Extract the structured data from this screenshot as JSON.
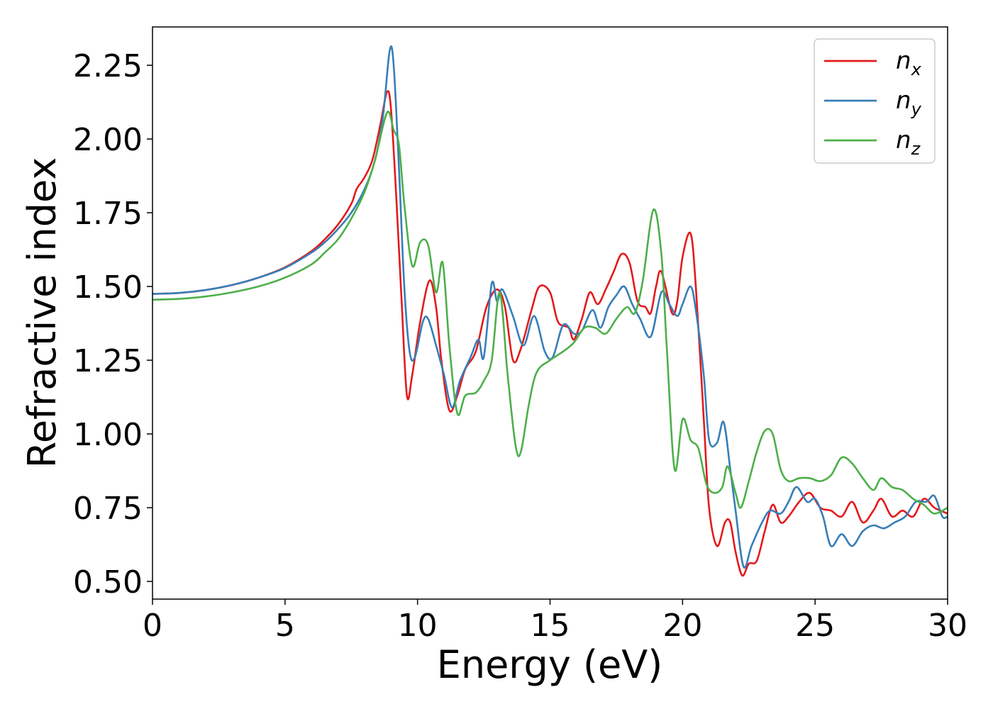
{
  "chart_data": {
    "type": "line",
    "xlabel": "Energy (eV)",
    "ylabel": "Refractive index",
    "xlim": [
      0,
      30
    ],
    "ylim": [
      0.44,
      2.38
    ],
    "xticks": [
      "0",
      "5",
      "10",
      "15",
      "20",
      "25",
      "30"
    ],
    "yticks": [
      "0.50",
      "0.75",
      "1.00",
      "1.25",
      "1.50",
      "1.75",
      "2.00",
      "2.25"
    ],
    "grid": false,
    "legend_position": "top-right",
    "series": [
      {
        "name": "n",
        "sub": "x",
        "color": "#e41a1c",
        "points": [
          [
            0,
            1.475
          ],
          [
            1,
            1.478
          ],
          [
            2,
            1.488
          ],
          [
            3,
            1.505
          ],
          [
            4,
            1.53
          ],
          [
            5,
            1.565
          ],
          [
            6,
            1.62
          ],
          [
            6.5,
            1.66
          ],
          [
            7,
            1.71
          ],
          [
            7.5,
            1.78
          ],
          [
            7.7,
            1.83
          ],
          [
            8,
            1.87
          ],
          [
            8.3,
            1.93
          ],
          [
            8.6,
            2.05
          ],
          [
            8.85,
            2.16
          ],
          [
            9.0,
            2.1
          ],
          [
            9.2,
            1.8
          ],
          [
            9.4,
            1.45
          ],
          [
            9.6,
            1.13
          ],
          [
            9.8,
            1.2
          ],
          [
            10.1,
            1.38
          ],
          [
            10.45,
            1.52
          ],
          [
            10.7,
            1.43
          ],
          [
            10.9,
            1.25
          ],
          [
            11.2,
            1.08
          ],
          [
            11.5,
            1.13
          ],
          [
            11.8,
            1.22
          ],
          [
            12.2,
            1.28
          ],
          [
            12.6,
            1.43
          ],
          [
            13.0,
            1.49
          ],
          [
            13.3,
            1.43
          ],
          [
            13.6,
            1.25
          ],
          [
            13.9,
            1.29
          ],
          [
            14.3,
            1.42
          ],
          [
            14.6,
            1.5
          ],
          [
            15.0,
            1.48
          ],
          [
            15.3,
            1.38
          ],
          [
            15.7,
            1.36
          ],
          [
            15.9,
            1.32
          ],
          [
            16.2,
            1.39
          ],
          [
            16.5,
            1.48
          ],
          [
            16.8,
            1.44
          ],
          [
            17.1,
            1.49
          ],
          [
            17.4,
            1.55
          ],
          [
            17.7,
            1.61
          ],
          [
            18.0,
            1.58
          ],
          [
            18.3,
            1.45
          ],
          [
            18.6,
            1.43
          ],
          [
            18.8,
            1.41
          ],
          [
            19.0,
            1.5
          ],
          [
            19.2,
            1.55
          ],
          [
            19.6,
            1.41
          ],
          [
            19.8,
            1.45
          ],
          [
            20.0,
            1.6
          ],
          [
            20.3,
            1.68
          ],
          [
            20.5,
            1.5
          ],
          [
            20.8,
            1.05
          ],
          [
            21.0,
            0.75
          ],
          [
            21.3,
            0.62
          ],
          [
            21.6,
            0.7
          ],
          [
            21.8,
            0.7
          ],
          [
            22.0,
            0.6
          ],
          [
            22.25,
            0.52
          ],
          [
            22.5,
            0.56
          ],
          [
            22.8,
            0.57
          ],
          [
            23.1,
            0.67
          ],
          [
            23.4,
            0.76
          ],
          [
            23.7,
            0.7
          ],
          [
            24.0,
            0.72
          ],
          [
            24.4,
            0.77
          ],
          [
            24.8,
            0.8
          ],
          [
            25.2,
            0.75
          ],
          [
            25.6,
            0.74
          ],
          [
            26.0,
            0.72
          ],
          [
            26.4,
            0.77
          ],
          [
            26.8,
            0.7
          ],
          [
            27.2,
            0.74
          ],
          [
            27.5,
            0.78
          ],
          [
            27.9,
            0.72
          ],
          [
            28.3,
            0.74
          ],
          [
            28.7,
            0.72
          ],
          [
            29.1,
            0.78
          ],
          [
            29.5,
            0.75
          ],
          [
            30,
            0.73
          ]
        ]
      },
      {
        "name": "n",
        "sub": "y",
        "color": "#377eb8",
        "points": [
          [
            0,
            1.475
          ],
          [
            1,
            1.478
          ],
          [
            2,
            1.488
          ],
          [
            3,
            1.505
          ],
          [
            4,
            1.53
          ],
          [
            5,
            1.563
          ],
          [
            6,
            1.615
          ],
          [
            6.5,
            1.65
          ],
          [
            7,
            1.695
          ],
          [
            7.5,
            1.75
          ],
          [
            8,
            1.83
          ],
          [
            8.4,
            1.93
          ],
          [
            8.7,
            2.08
          ],
          [
            8.95,
            2.3
          ],
          [
            9.1,
            2.25
          ],
          [
            9.3,
            1.9
          ],
          [
            9.5,
            1.5
          ],
          [
            9.7,
            1.28
          ],
          [
            9.9,
            1.26
          ],
          [
            10.2,
            1.38
          ],
          [
            10.4,
            1.39
          ],
          [
            10.7,
            1.3
          ],
          [
            11.0,
            1.2
          ],
          [
            11.3,
            1.09
          ],
          [
            11.6,
            1.18
          ],
          [
            12.0,
            1.26
          ],
          [
            12.3,
            1.32
          ],
          [
            12.5,
            1.26
          ],
          [
            12.8,
            1.51
          ],
          [
            13.0,
            1.45
          ],
          [
            13.2,
            1.49
          ],
          [
            13.6,
            1.4
          ],
          [
            14.0,
            1.3
          ],
          [
            14.4,
            1.4
          ],
          [
            14.8,
            1.28
          ],
          [
            15.1,
            1.26
          ],
          [
            15.5,
            1.37
          ],
          [
            15.9,
            1.34
          ],
          [
            16.2,
            1.35
          ],
          [
            16.6,
            1.42
          ],
          [
            16.9,
            1.36
          ],
          [
            17.2,
            1.43
          ],
          [
            17.5,
            1.47
          ],
          [
            17.8,
            1.5
          ],
          [
            18.1,
            1.44
          ],
          [
            18.4,
            1.39
          ],
          [
            18.8,
            1.33
          ],
          [
            19.2,
            1.48
          ],
          [
            19.5,
            1.44
          ],
          [
            19.8,
            1.4
          ],
          [
            20.0,
            1.44
          ],
          [
            20.3,
            1.5
          ],
          [
            20.5,
            1.42
          ],
          [
            20.8,
            1.2
          ],
          [
            21.0,
            0.98
          ],
          [
            21.3,
            0.97
          ],
          [
            21.55,
            1.04
          ],
          [
            21.8,
            0.88
          ],
          [
            22.0,
            0.74
          ],
          [
            22.3,
            0.55
          ],
          [
            22.6,
            0.62
          ],
          [
            23.0,
            0.7
          ],
          [
            23.3,
            0.74
          ],
          [
            23.7,
            0.73
          ],
          [
            24.0,
            0.77
          ],
          [
            24.3,
            0.82
          ],
          [
            24.7,
            0.77
          ],
          [
            25.0,
            0.78
          ],
          [
            25.3,
            0.72
          ],
          [
            25.6,
            0.62
          ],
          [
            26.0,
            0.66
          ],
          [
            26.4,
            0.62
          ],
          [
            26.8,
            0.67
          ],
          [
            27.2,
            0.69
          ],
          [
            27.6,
            0.68
          ],
          [
            28.0,
            0.7
          ],
          [
            28.4,
            0.72
          ],
          [
            28.8,
            0.77
          ],
          [
            29.2,
            0.77
          ],
          [
            29.5,
            0.79
          ],
          [
            29.8,
            0.72
          ],
          [
            30,
            0.72
          ]
        ]
      },
      {
        "name": "n",
        "sub": "z",
        "color": "#4daf4a",
        "points": [
          [
            0,
            1.455
          ],
          [
            1,
            1.458
          ],
          [
            2,
            1.466
          ],
          [
            3,
            1.48
          ],
          [
            4,
            1.5
          ],
          [
            5,
            1.53
          ],
          [
            6,
            1.575
          ],
          [
            6.5,
            1.615
          ],
          [
            7,
            1.66
          ],
          [
            7.5,
            1.73
          ],
          [
            8,
            1.82
          ],
          [
            8.4,
            1.93
          ],
          [
            8.85,
            2.09
          ],
          [
            9.1,
            2.03
          ],
          [
            9.3,
            1.98
          ],
          [
            9.5,
            1.78
          ],
          [
            9.8,
            1.57
          ],
          [
            10.1,
            1.65
          ],
          [
            10.4,
            1.64
          ],
          [
            10.7,
            1.48
          ],
          [
            10.95,
            1.58
          ],
          [
            11.2,
            1.3
          ],
          [
            11.5,
            1.07
          ],
          [
            11.8,
            1.13
          ],
          [
            12.2,
            1.14
          ],
          [
            12.5,
            1.18
          ],
          [
            12.8,
            1.25
          ],
          [
            13.1,
            1.48
          ],
          [
            13.4,
            1.2
          ],
          [
            13.7,
            0.96
          ],
          [
            13.9,
            0.94
          ],
          [
            14.2,
            1.1
          ],
          [
            14.5,
            1.21
          ],
          [
            15.0,
            1.25
          ],
          [
            15.5,
            1.28
          ],
          [
            15.9,
            1.31
          ],
          [
            16.3,
            1.36
          ],
          [
            16.7,
            1.36
          ],
          [
            17.1,
            1.34
          ],
          [
            17.5,
            1.39
          ],
          [
            17.9,
            1.43
          ],
          [
            18.2,
            1.41
          ],
          [
            18.5,
            1.52
          ],
          [
            18.9,
            1.76
          ],
          [
            19.2,
            1.61
          ],
          [
            19.4,
            1.3
          ],
          [
            19.7,
            0.88
          ],
          [
            20.0,
            1.05
          ],
          [
            20.3,
            0.98
          ],
          [
            20.6,
            0.95
          ],
          [
            20.9,
            0.83
          ],
          [
            21.2,
            0.8
          ],
          [
            21.5,
            0.82
          ],
          [
            21.7,
            0.89
          ],
          [
            22.0,
            0.8
          ],
          [
            22.2,
            0.75
          ],
          [
            22.5,
            0.84
          ],
          [
            22.8,
            0.94
          ],
          [
            23.1,
            1.01
          ],
          [
            23.4,
            1.0
          ],
          [
            23.7,
            0.88
          ],
          [
            24.0,
            0.84
          ],
          [
            24.4,
            0.85
          ],
          [
            24.8,
            0.85
          ],
          [
            25.2,
            0.84
          ],
          [
            25.6,
            0.86
          ],
          [
            26.0,
            0.92
          ],
          [
            26.4,
            0.9
          ],
          [
            26.8,
            0.85
          ],
          [
            27.2,
            0.81
          ],
          [
            27.5,
            0.85
          ],
          [
            27.9,
            0.82
          ],
          [
            28.3,
            0.81
          ],
          [
            28.7,
            0.78
          ],
          [
            29.1,
            0.76
          ],
          [
            29.5,
            0.73
          ],
          [
            30,
            0.75
          ]
        ]
      }
    ]
  }
}
